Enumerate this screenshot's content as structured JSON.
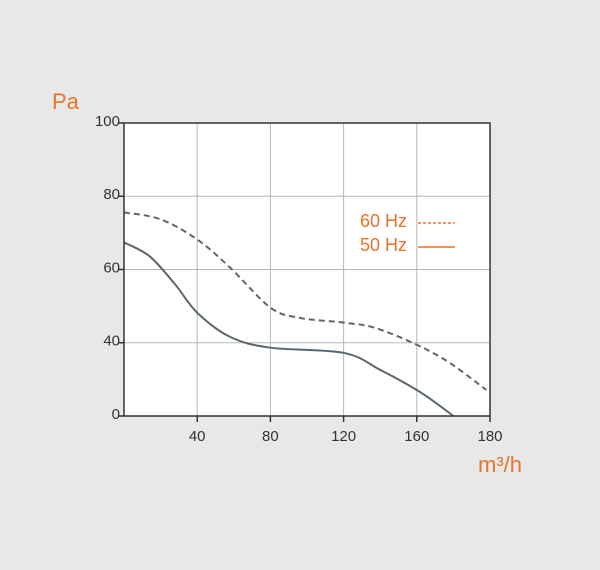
{
  "chart_data": {
    "type": "line",
    "y_label": "Pa",
    "x_label": "m³/h",
    "xlim": [
      0,
      180
    ],
    "xticks": [
      40,
      80,
      120,
      160,
      180
    ],
    "ylim": [
      0,
      100
    ],
    "yticks": [
      0,
      40,
      60,
      80,
      100
    ],
    "grid": true,
    "legend": "right",
    "series": [
      {
        "name": "60 Hz",
        "color": "#5b6770",
        "dash": "dashed",
        "x": [
          0,
          20,
          40,
          58,
          80,
          96,
          120,
          137,
          160,
          169,
          179
        ],
        "values": [
          75.6,
          73.7,
          68.2,
          60.5,
          49.6,
          46.8,
          45.5,
          44.1,
          38.9,
          29,
          14.2
        ]
      },
      {
        "name": "50 Hz",
        "color": "#5b6770",
        "dash": "solid",
        "x": [
          0,
          14,
          28,
          40,
          58,
          80,
          120,
          140,
          160,
          166,
          170
        ],
        "values": [
          67.4,
          63.6,
          55.9,
          48.2,
          41.6,
          37.3,
          34.5,
          25.2,
          14.2,
          6,
          0
        ]
      }
    ]
  }
}
